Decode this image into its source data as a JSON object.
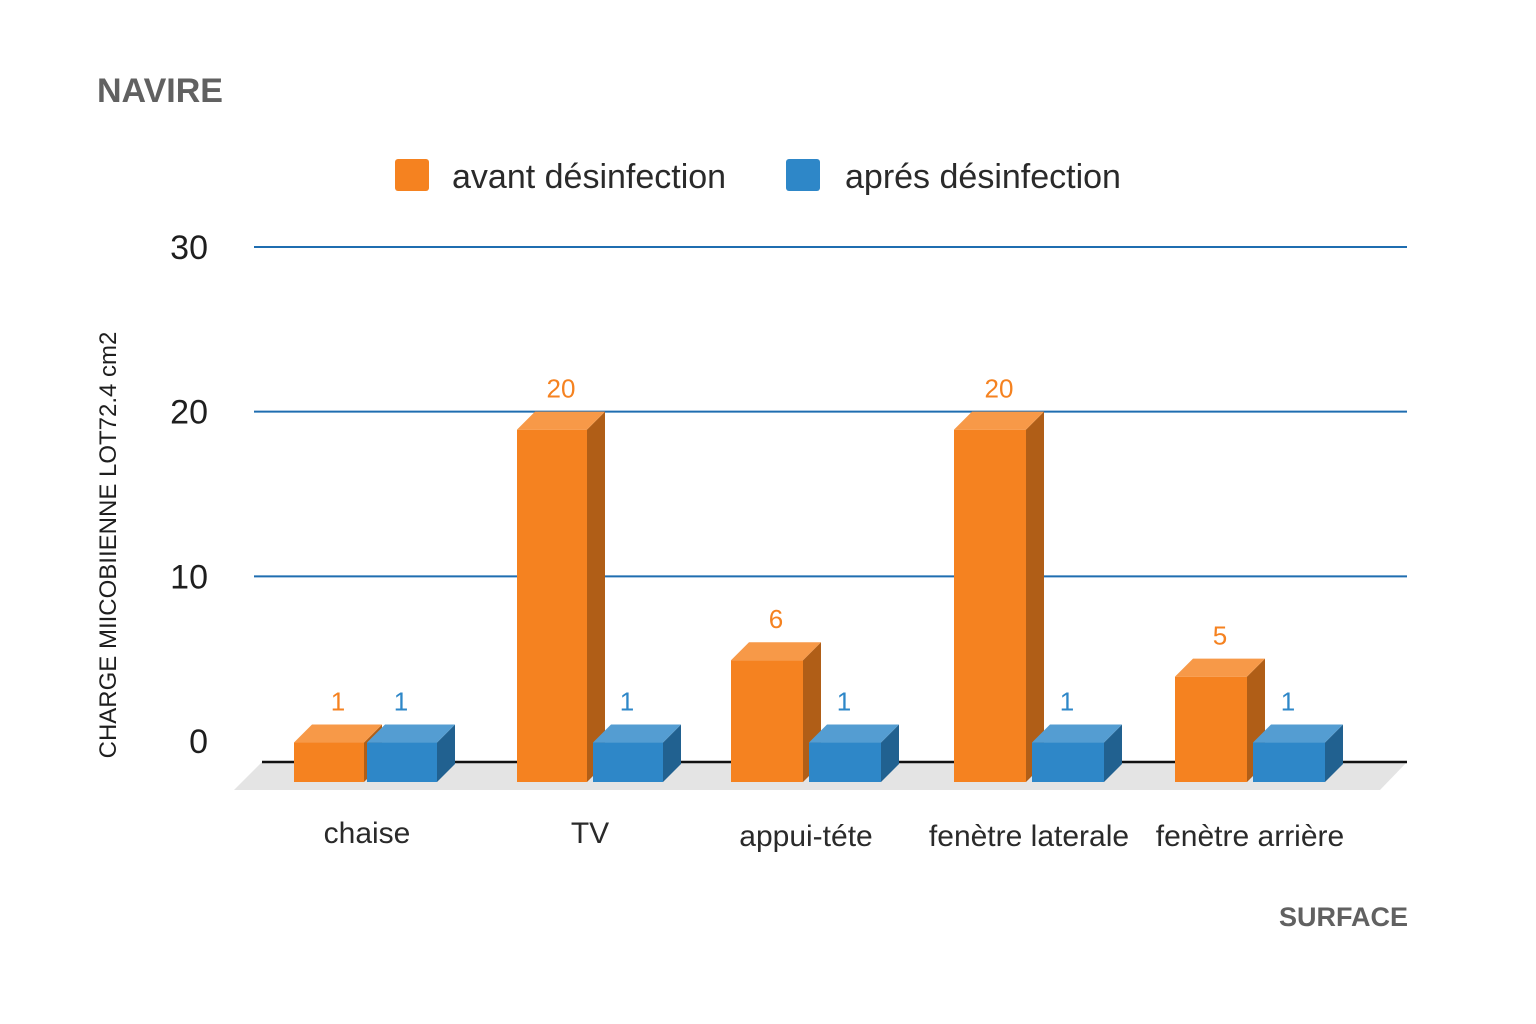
{
  "chart_data": {
    "type": "bar",
    "title": "NAVIRE",
    "xlabel": "SURFACE",
    "ylabel": "CHARGE MIICOBIIENNE LOT72.4 cm2",
    "ylim": [
      0,
      30
    ],
    "yticks": [
      "0",
      "10",
      "20",
      "30"
    ],
    "categories": [
      "chaise",
      "TV",
      "appui-téte",
      "fenètre laterale",
      "fenètre arrière"
    ],
    "series": [
      {
        "name": "avant désinfection",
        "color": "#f58220",
        "values": [
          1,
          20,
          6,
          20,
          5
        ],
        "labels": [
          "1",
          "20",
          "6",
          "20",
          "5"
        ]
      },
      {
        "name": "aprés désinfection",
        "color": "#2e87c8",
        "values": [
          1,
          1,
          1,
          1,
          1
        ],
        "labels": [
          "1",
          "1",
          "1",
          "1",
          "1"
        ]
      }
    ],
    "grid": true,
    "legend_position": "top",
    "style": "3d"
  }
}
